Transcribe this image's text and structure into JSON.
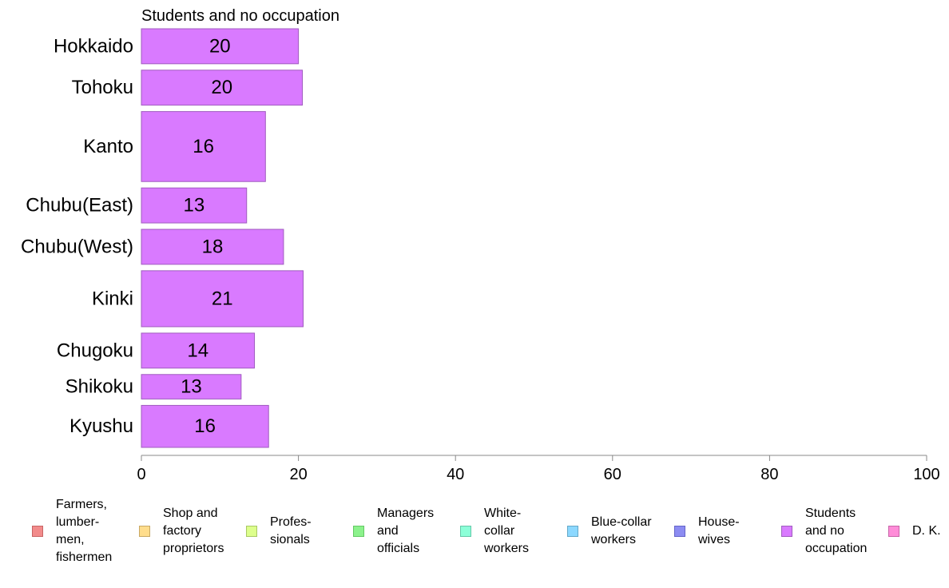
{
  "chart_data": {
    "type": "bar",
    "orientation": "horizontal",
    "title": "Students and no occupation",
    "categories": [
      "Hokkaido",
      "Tohoku",
      "Kanto",
      "Chubu(East)",
      "Chubu(West)",
      "Kinki",
      "Chugoku",
      "Shikoku",
      "Kyushu"
    ],
    "series": [
      {
        "name": "Students and no occupation",
        "values": [
          20,
          20.5,
          15.8,
          13.4,
          18.1,
          20.6,
          14.4,
          12.7,
          16.2
        ]
      }
    ],
    "value_labels": [
      "20",
      "20",
      "16",
      "13",
      "18",
      "21",
      "14",
      "13",
      "16"
    ],
    "relative_widths": [
      1,
      1,
      2,
      1,
      1,
      1.6,
      1,
      0.7,
      1.2
    ],
    "xlim": [
      0,
      100
    ],
    "xticks": [
      "0",
      "20",
      "40",
      "60",
      "80",
      "100"
    ],
    "grid": false,
    "bar_color": "#d97aff",
    "bar_edge_color": "#a05cbf",
    "legend_position": "bottom",
    "legend": [
      {
        "label": "Farmers,\nlumber-\nmen,\nfishermen",
        "color": "#f28b8b",
        "edge": "#c86464"
      },
      {
        "label": "Shop and\nfactory\nproprietors",
        "color": "#ffdd8c",
        "edge": "#c8a864"
      },
      {
        "label": "Profes-\nsionals",
        "color": "#ddff8c",
        "edge": "#a8c864"
      },
      {
        "label": "Managers\nand\nofficials",
        "color": "#8cf28c",
        "edge": "#64c864"
      },
      {
        "label": "White-\ncollar\nworkers",
        "color": "#8cffd8",
        "edge": "#64c8a8"
      },
      {
        "label": "Blue-collar\nworkers",
        "color": "#8cd8ff",
        "edge": "#64a8c8"
      },
      {
        "label": "House-\nwives",
        "color": "#8c8cf2",
        "edge": "#6464c8"
      },
      {
        "label": "Students\nand no\noccupation",
        "color": "#d97aff",
        "edge": "#a05cbf"
      },
      {
        "label": "D. K.",
        "color": "#ff8cd8",
        "edge": "#c864a8"
      }
    ]
  }
}
